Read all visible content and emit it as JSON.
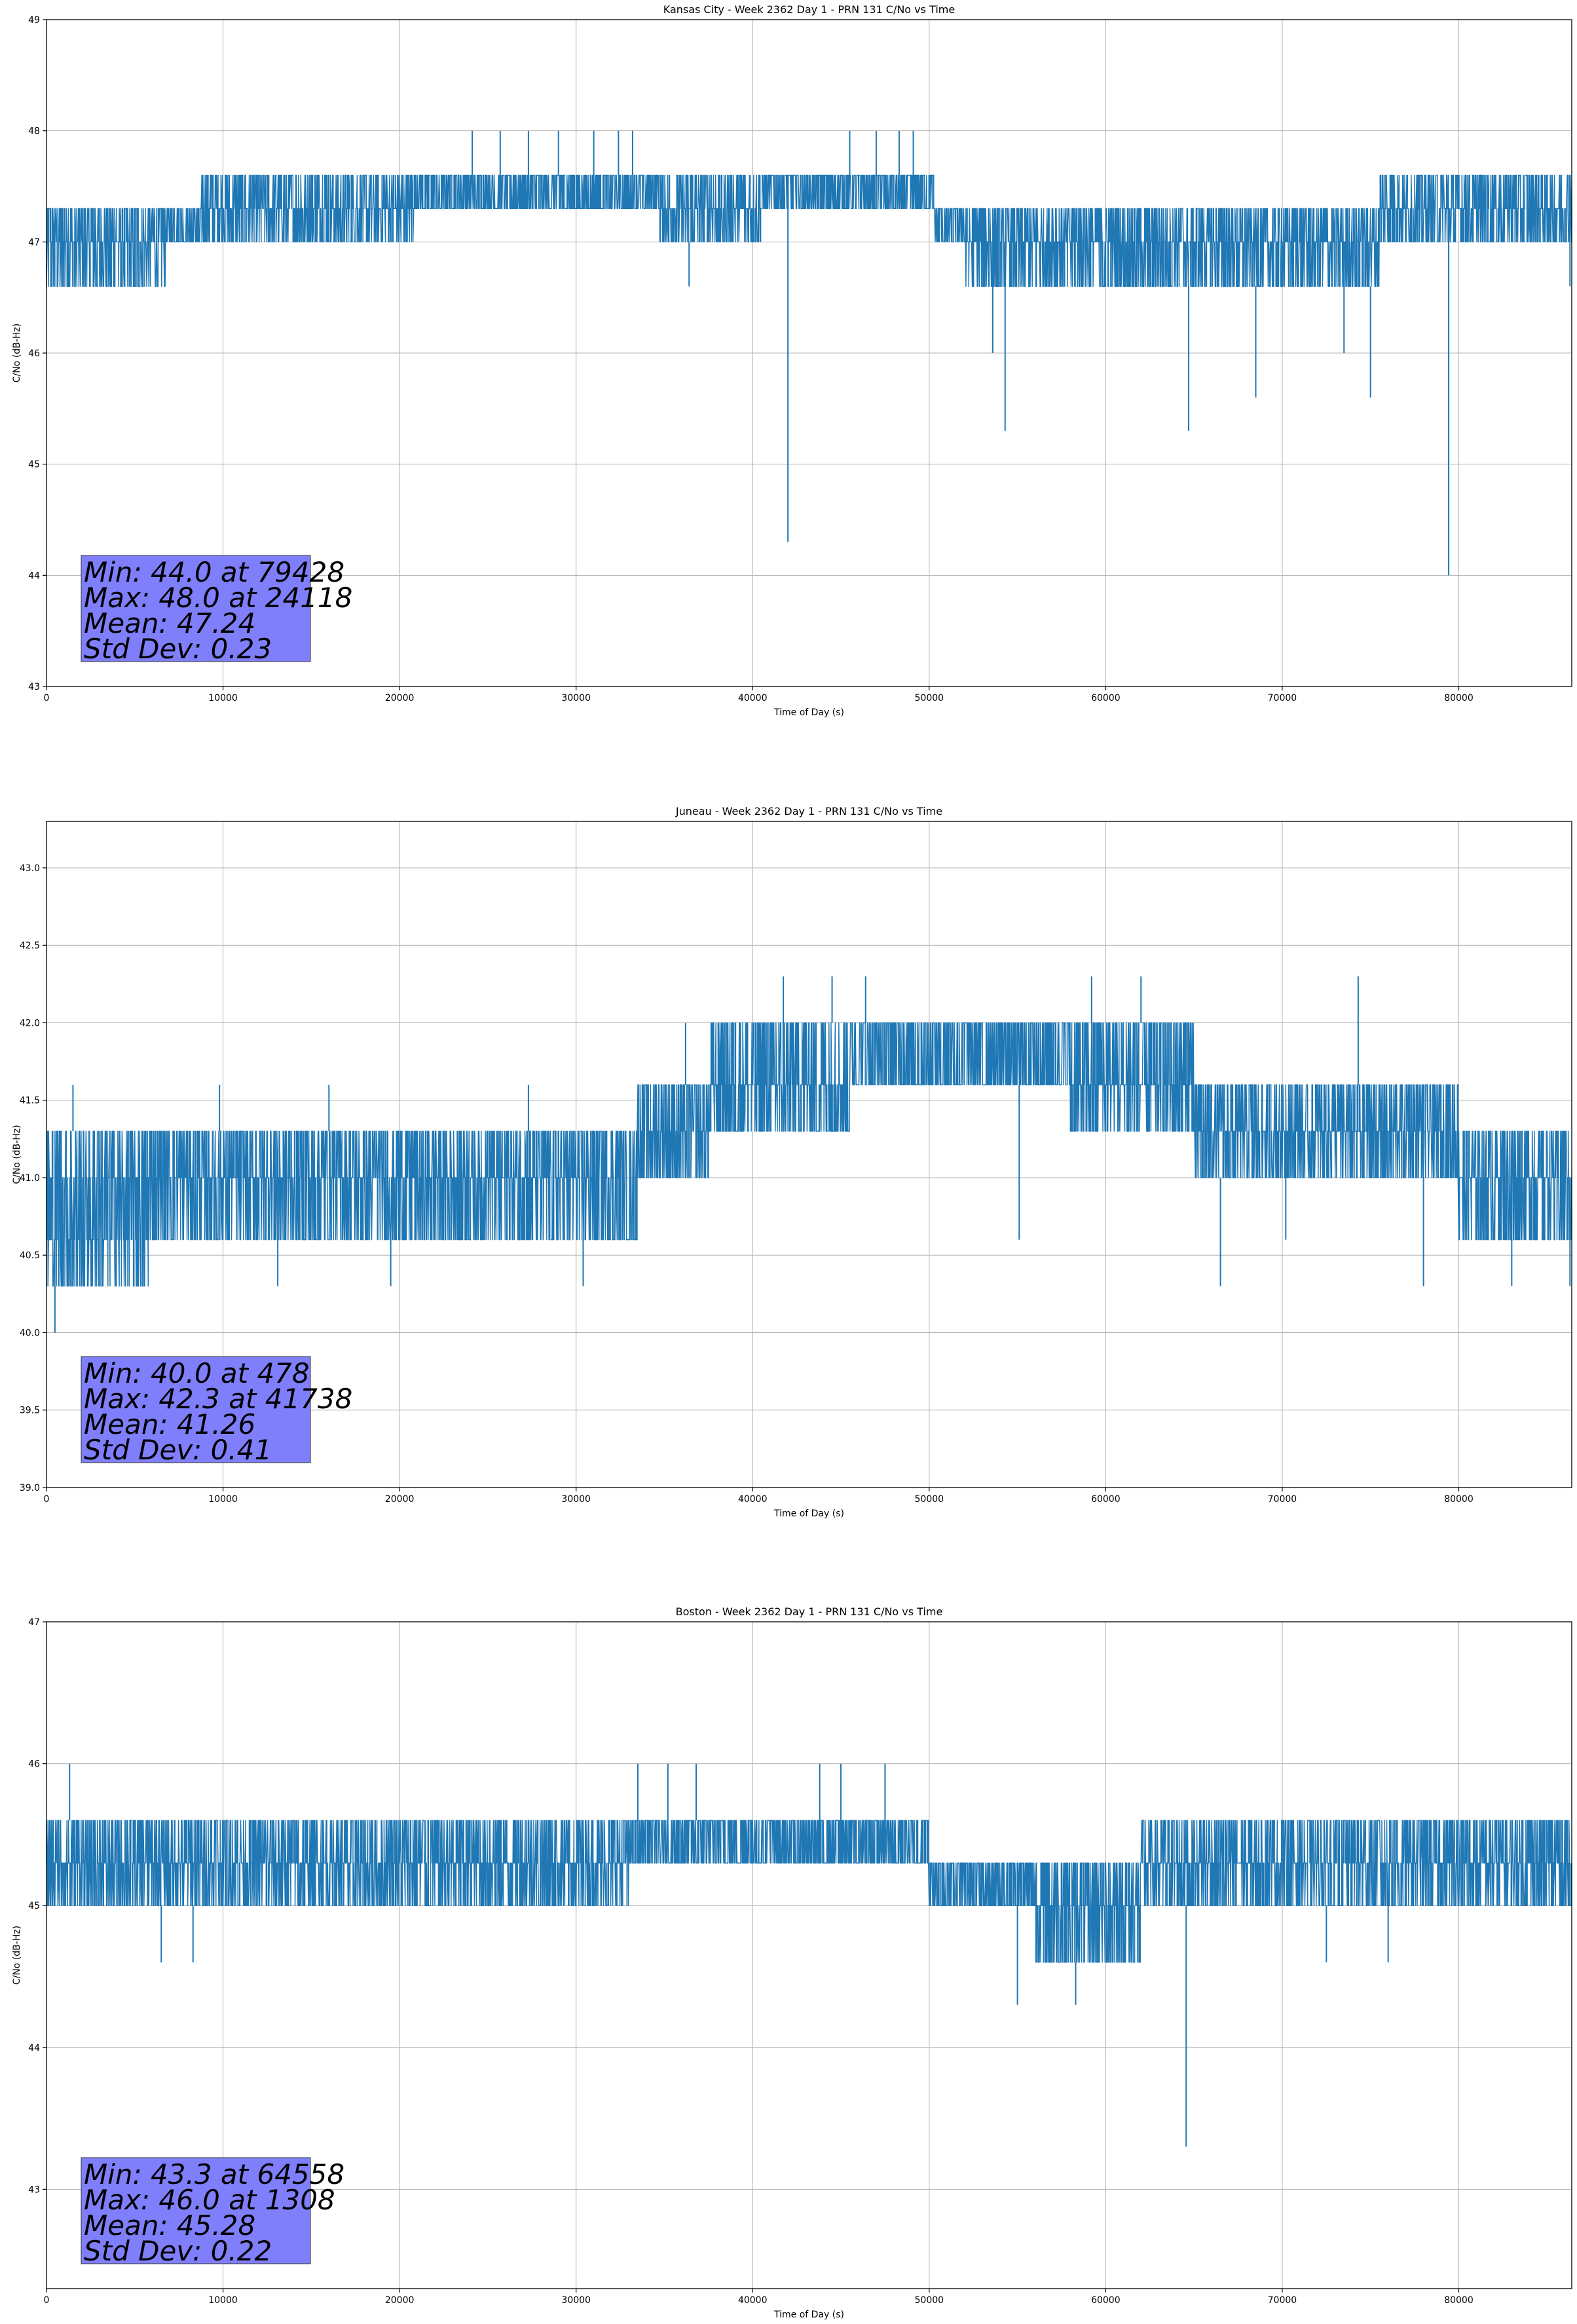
{
  "chart_data": [
    {
      "type": "line",
      "title": "Kansas City - Week 2362 Day 1 - PRN 131 C/No vs Time",
      "xlabel": "Time of Day (s)",
      "ylabel": "C/No (dB-Hz)",
      "xlim": [
        0,
        86400
      ],
      "ylim": [
        43,
        49
      ],
      "xticks": [
        0,
        10000,
        20000,
        30000,
        40000,
        50000,
        60000,
        70000,
        80000
      ],
      "yticks": [
        43,
        44,
        45,
        46,
        47,
        48,
        49
      ],
      "ytick_labels": [
        "43",
        "44",
        "45",
        "46",
        "47",
        "48",
        "49"
      ],
      "grid": true,
      "line_color": "#1f77b4",
      "stats": [
        "Min: 44.0 at 79428",
        "Max: 48.0 at 24118",
        "Mean: 47.24",
        "Std Dev: 0.23"
      ],
      "bands": [
        {
          "x": [
            0,
            6800
          ],
          "levels": [
            46.6,
            47.0,
            47.3
          ]
        },
        {
          "x": [
            6800,
            8800
          ],
          "levels": [
            47.0,
            47.3
          ]
        },
        {
          "x": [
            8800,
            20800
          ],
          "levels": [
            47.0,
            47.3,
            47.6
          ]
        },
        {
          "x": [
            20800,
            34700
          ],
          "levels": [
            47.3,
            47.6
          ]
        },
        {
          "x": [
            34700,
            40500
          ],
          "levels": [
            47.0,
            47.3,
            47.6
          ]
        },
        {
          "x": [
            40500,
            50300
          ],
          "levels": [
            47.3,
            47.6
          ]
        },
        {
          "x": [
            50300,
            52000
          ],
          "levels": [
            47.0,
            47.3
          ]
        },
        {
          "x": [
            52000,
            75500
          ],
          "levels": [
            46.6,
            47.0,
            47.3
          ]
        },
        {
          "x": [
            75500,
            86400
          ],
          "levels": [
            47.0,
            47.3,
            47.6
          ]
        }
      ],
      "spikes": [
        {
          "x": 24118,
          "y": 48.0
        },
        {
          "x": 25700,
          "y": 48.0
        },
        {
          "x": 27300,
          "y": 48.0
        },
        {
          "x": 29000,
          "y": 48.0
        },
        {
          "x": 31000,
          "y": 48.0
        },
        {
          "x": 32400,
          "y": 48.0
        },
        {
          "x": 33200,
          "y": 48.0
        },
        {
          "x": 36600,
          "y": 47.6
        },
        {
          "x": 42000,
          "y": 44.3
        },
        {
          "x": 45500,
          "y": 48.0
        },
        {
          "x": 47000,
          "y": 48.0
        },
        {
          "x": 48300,
          "y": 48.0
        },
        {
          "x": 49100,
          "y": 48.0
        },
        {
          "x": 36400,
          "y": 46.6
        },
        {
          "x": 52500,
          "y": 46.6
        },
        {
          "x": 53600,
          "y": 46.0
        },
        {
          "x": 54300,
          "y": 45.3
        },
        {
          "x": 62400,
          "y": 46.6
        },
        {
          "x": 64700,
          "y": 45.3
        },
        {
          "x": 66400,
          "y": 46.6
        },
        {
          "x": 68500,
          "y": 45.6
        },
        {
          "x": 73500,
          "y": 46.0
        },
        {
          "x": 75000,
          "y": 45.6
        },
        {
          "x": 79428,
          "y": 44.0
        },
        {
          "x": 86300,
          "y": 46.6
        }
      ]
    },
    {
      "type": "line",
      "title": "Juneau - Week 2362 Day 1 - PRN 131 C/No vs Time",
      "xlabel": "Time of Day (s)",
      "ylabel": "C/No (dB-Hz)",
      "xlim": [
        0,
        86400
      ],
      "ylim": [
        39.0,
        43.3
      ],
      "xticks": [
        0,
        10000,
        20000,
        30000,
        40000,
        50000,
        60000,
        70000,
        80000
      ],
      "yticks": [
        39.0,
        39.5,
        40.0,
        40.5,
        41.0,
        41.5,
        42.0,
        42.5,
        43.0
      ],
      "ytick_labels": [
        "39.0",
        "39.5",
        "40.0",
        "40.5",
        "41.0",
        "41.5",
        "42.0",
        "42.5",
        "43.0"
      ],
      "grid": true,
      "line_color": "#1f77b4",
      "stats": [
        "Min: 40.0 at 478",
        "Max: 42.3 at 41738",
        "Mean: 41.26",
        "Std Dev: 0.41"
      ],
      "bands": [
        {
          "x": [
            0,
            5800
          ],
          "levels": [
            40.3,
            40.6,
            41.0,
            41.3
          ]
        },
        {
          "x": [
            5800,
            14700
          ],
          "levels": [
            40.6,
            41.0,
            41.3
          ]
        },
        {
          "x": [
            14700,
            33500
          ],
          "levels": [
            40.6,
            41.0,
            41.3
          ]
        },
        {
          "x": [
            33500,
            37600
          ],
          "levels": [
            41.0,
            41.3,
            41.6
          ]
        },
        {
          "x": [
            37600,
            45500
          ],
          "levels": [
            41.3,
            41.6,
            42.0
          ]
        },
        {
          "x": [
            45500,
            58000
          ],
          "levels": [
            41.6,
            42.0
          ]
        },
        {
          "x": [
            58000,
            65000
          ],
          "levels": [
            41.3,
            41.6,
            42.0
          ]
        },
        {
          "x": [
            65000,
            80000
          ],
          "levels": [
            41.0,
            41.3,
            41.6
          ]
        },
        {
          "x": [
            80000,
            86400
          ],
          "levels": [
            40.6,
            41.0,
            41.3
          ]
        }
      ],
      "spikes": [
        {
          "x": 478,
          "y": 40.0
        },
        {
          "x": 1500,
          "y": 41.6
        },
        {
          "x": 9800,
          "y": 41.6
        },
        {
          "x": 13100,
          "y": 40.3
        },
        {
          "x": 16000,
          "y": 41.6
        },
        {
          "x": 19500,
          "y": 40.3
        },
        {
          "x": 27300,
          "y": 41.6
        },
        {
          "x": 30400,
          "y": 40.3
        },
        {
          "x": 36200,
          "y": 42.0
        },
        {
          "x": 41738,
          "y": 42.3
        },
        {
          "x": 44500,
          "y": 42.3
        },
        {
          "x": 46400,
          "y": 42.3
        },
        {
          "x": 55100,
          "y": 40.6
        },
        {
          "x": 59200,
          "y": 42.3
        },
        {
          "x": 62000,
          "y": 42.3
        },
        {
          "x": 66500,
          "y": 40.3
        },
        {
          "x": 70200,
          "y": 40.6
        },
        {
          "x": 74300,
          "y": 42.3
        },
        {
          "x": 78000,
          "y": 40.3
        },
        {
          "x": 83000,
          "y": 40.3
        },
        {
          "x": 86300,
          "y": 40.3
        }
      ]
    },
    {
      "type": "line",
      "title": "Boston - Week 2362 Day 1 - PRN 131 C/No vs Time",
      "xlabel": "Time of Day (s)",
      "ylabel": "C/No (dB-Hz)",
      "xlim": [
        0,
        86400
      ],
      "ylim": [
        42.3,
        47
      ],
      "xticks": [
        0,
        10000,
        20000,
        30000,
        40000,
        50000,
        60000,
        70000,
        80000
      ],
      "yticks": [
        43,
        44,
        45,
        46,
        47
      ],
      "ytick_labels": [
        "43",
        "44",
        "45",
        "46",
        "47"
      ],
      "grid": true,
      "line_color": "#1f77b4",
      "stats": [
        "Min: 43.3 at 64558",
        "Max: 46.0 at 1308",
        "Mean: 45.28",
        "Std Dev: 0.22"
      ],
      "bands": [
        {
          "x": [
            0,
            33000
          ],
          "levels": [
            45.0,
            45.3,
            45.6
          ]
        },
        {
          "x": [
            33000,
            50000
          ],
          "levels": [
            45.3,
            45.6
          ]
        },
        {
          "x": [
            50000,
            56000
          ],
          "levels": [
            45.0,
            45.3
          ]
        },
        {
          "x": [
            56000,
            62000
          ],
          "levels": [
            44.6,
            45.0,
            45.3
          ]
        },
        {
          "x": [
            62000,
            86400
          ],
          "levels": [
            45.0,
            45.3,
            45.6
          ]
        }
      ],
      "spikes": [
        {
          "x": 1308,
          "y": 46.0
        },
        {
          "x": 6500,
          "y": 44.6
        },
        {
          "x": 8300,
          "y": 44.6
        },
        {
          "x": 33500,
          "y": 46.0
        },
        {
          "x": 35200,
          "y": 46.0
        },
        {
          "x": 36800,
          "y": 46.0
        },
        {
          "x": 43800,
          "y": 46.0
        },
        {
          "x": 45000,
          "y": 46.0
        },
        {
          "x": 47500,
          "y": 46.0
        },
        {
          "x": 55000,
          "y": 44.3
        },
        {
          "x": 58300,
          "y": 44.3
        },
        {
          "x": 64558,
          "y": 43.3
        },
        {
          "x": 72500,
          "y": 44.6
        },
        {
          "x": 76000,
          "y": 44.6
        }
      ]
    }
  ]
}
